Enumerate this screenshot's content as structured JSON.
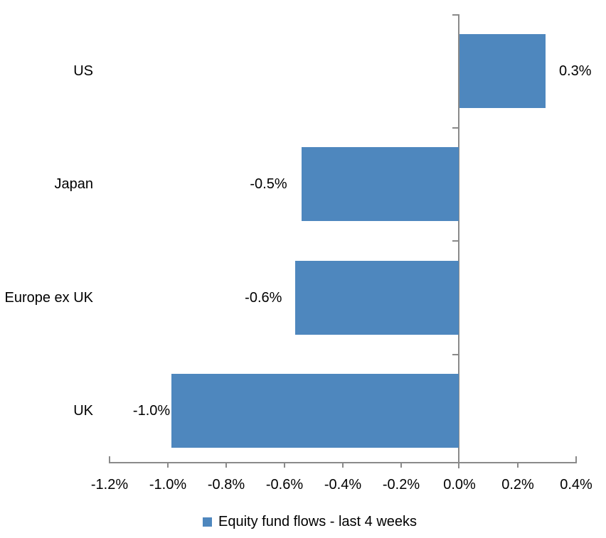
{
  "chart_data": {
    "type": "bar",
    "orientation": "horizontal",
    "title": "",
    "categories": [
      "US",
      "Japan",
      "Europe ex UK",
      "UK"
    ],
    "values": [
      0.3,
      -0.5,
      -0.6,
      -1.0
    ],
    "plotted_values": [
      0.295,
      -0.54,
      -0.56,
      -0.985
    ],
    "data_labels": [
      "0.3%",
      "-0.5%",
      "-0.6%",
      "-1.0%"
    ],
    "x_ticks": [
      "-1.2%",
      "-1.0%",
      "-0.8%",
      "-0.6%",
      "-0.4%",
      "-0.2%",
      "0.0%",
      "0.2%",
      "0.4%"
    ],
    "xlim": [
      -1.2,
      0.4
    ],
    "xlabel": "",
    "ylabel": "",
    "grid": false,
    "legend_position": "bottom",
    "legend_label": "Equity fund flows - last 4 weeks",
    "series": [
      {
        "name": "Equity fund flows - last 4 weeks",
        "values": [
          0.3,
          -0.5,
          -0.6,
          -1.0
        ]
      }
    ],
    "bar_color": "#4E87BE",
    "axis_color": "#8A8A8A",
    "text_color": "#000000"
  }
}
